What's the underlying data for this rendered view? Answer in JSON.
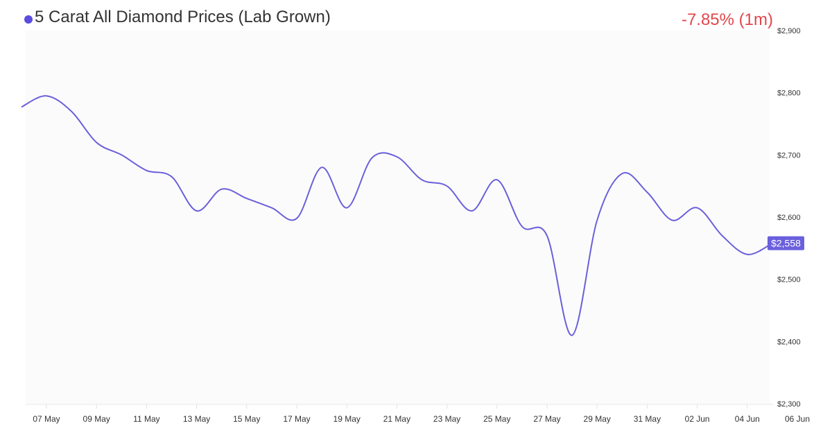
{
  "header": {
    "title": "5 Carat All Diamond Prices (Lab Grown)",
    "change": "-7.85% (1m)"
  },
  "colors": {
    "line": "#6a5fdc",
    "dot": "#5b4de0",
    "change": "#e0474c",
    "badge": "#6a5fdc",
    "plot_bg": "#fbfbfb"
  },
  "chart_data": {
    "type": "line",
    "title": "5 Carat All Diamond Prices (Lab Grown)",
    "xlabel": "",
    "ylabel": "",
    "ylim": [
      2300,
      2900
    ],
    "y_ticks": [
      2300,
      2400,
      2500,
      2600,
      2700,
      2800,
      2900
    ],
    "y_tick_labels": [
      "$2,300",
      "$2,400",
      "$2,500",
      "$2,600",
      "$2,700",
      "$2,800",
      "$2,900"
    ],
    "x_tick_labels": [
      "07 May",
      "09 May",
      "11 May",
      "13 May",
      "15 May",
      "17 May",
      "19 May",
      "21 May",
      "23 May",
      "25 May",
      "27 May",
      "29 May",
      "31 May",
      "02 Jun",
      "04 Jun",
      "06 Jun"
    ],
    "x": [
      "06 May",
      "07 May",
      "08 May",
      "09 May",
      "10 May",
      "11 May",
      "12 May",
      "13 May",
      "14 May",
      "15 May",
      "16 May",
      "17 May",
      "18 May",
      "19 May",
      "20 May",
      "21 May",
      "22 May",
      "23 May",
      "24 May",
      "25 May",
      "26 May",
      "27 May",
      "28 May",
      "29 May",
      "30 May",
      "31 May",
      "01 Jun",
      "02 Jun",
      "03 Jun",
      "04 Jun",
      "05 Jun"
    ],
    "values": [
      2777,
      2795,
      2770,
      2720,
      2700,
      2675,
      2665,
      2610,
      2645,
      2630,
      2615,
      2598,
      2680,
      2615,
      2695,
      2697,
      2660,
      2650,
      2610,
      2660,
      2585,
      2570,
      2410,
      2595,
      2670,
      2640,
      2595,
      2615,
      2570,
      2540,
      2558
    ],
    "last_value_label": "$2,558",
    "grid": false,
    "legend": "none"
  }
}
